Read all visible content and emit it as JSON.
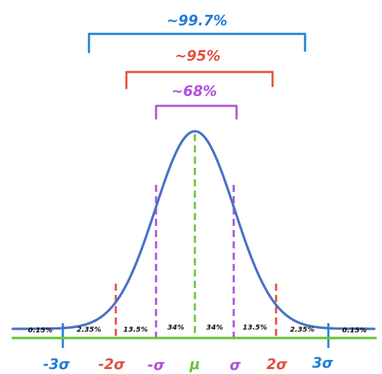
{
  "colors": {
    "curve": "#4a72c8",
    "axis": "#6bc43a",
    "mean_line": "#6bc43a",
    "sigma1": "#b04fdc",
    "sigma2": "#e2503f",
    "sigma3": "#1f7fd6",
    "text": "#111111"
  },
  "brackets": {
    "three_sigma": {
      "label": "~99.7%"
    },
    "two_sigma": {
      "label": "~95%"
    },
    "one_sigma": {
      "label": "~68%"
    }
  },
  "region_percents": [
    "0.15%",
    "2.35%",
    "13.5%",
    "34%",
    "34%",
    "13.5%",
    "2.35%",
    "0.15%"
  ],
  "axis_labels": {
    "minus3": "-3σ",
    "minus2": "-2σ",
    "minus1": "-σ",
    "mean": "μ",
    "plus1": "σ",
    "plus2": "2σ",
    "plus3": "3σ"
  }
}
